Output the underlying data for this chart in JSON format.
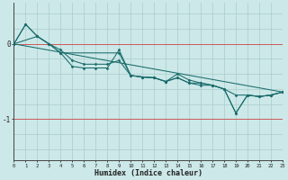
{
  "xlabel": "Humidex (Indice chaleur)",
  "bg_color": "#cce8e8",
  "line_color": "#1a6b6b",
  "grid_color_v": "#aacccc",
  "grid_color_h": "#cc4444",
  "x_min": 0,
  "x_max": 23,
  "y_min": -1.55,
  "y_max": 0.55,
  "yticks": [
    0,
    -1
  ],
  "lines": [
    {
      "x": [
        0,
        2,
        3,
        4,
        5,
        6,
        7,
        8,
        9,
        10,
        11,
        12,
        13,
        14,
        15,
        16,
        17,
        18,
        19,
        20,
        21,
        22,
        23
      ],
      "y": [
        0.0,
        0.1,
        0.0,
        -0.08,
        -0.22,
        -0.27,
        -0.27,
        -0.27,
        -0.22,
        -0.42,
        -0.44,
        -0.45,
        -0.5,
        -0.45,
        -0.52,
        -0.52,
        -0.55,
        -0.6,
        -0.68,
        -0.68,
        -0.7,
        -0.68,
        -0.64
      ]
    },
    {
      "x": [
        0,
        1,
        2,
        3,
        4,
        5,
        6,
        7,
        8,
        9,
        10,
        11,
        12,
        13,
        14,
        15,
        16,
        17,
        18,
        19,
        20,
        21,
        22,
        23
      ],
      "y": [
        0.0,
        0.26,
        0.1,
        0.0,
        -0.12,
        -0.3,
        -0.32,
        -0.32,
        -0.32,
        -0.08,
        -0.42,
        -0.44,
        -0.45,
        -0.5,
        -0.45,
        -0.52,
        -0.55,
        -0.55,
        -0.6,
        -0.92,
        -0.68,
        -0.7,
        -0.68,
        -0.64
      ]
    },
    {
      "x": [
        0,
        1,
        2,
        3,
        4,
        9,
        10,
        11,
        12,
        13,
        14,
        15,
        16,
        17,
        18,
        19,
        20,
        21,
        22,
        23
      ],
      "y": [
        0.0,
        0.26,
        0.1,
        0.0,
        -0.12,
        -0.12,
        -0.42,
        -0.44,
        -0.45,
        -0.5,
        -0.4,
        -0.48,
        -0.52,
        -0.55,
        -0.6,
        -0.92,
        -0.68,
        -0.7,
        -0.68,
        -0.64
      ]
    },
    {
      "x": [
        0,
        23
      ],
      "y": [
        0.0,
        -0.64
      ]
    }
  ]
}
